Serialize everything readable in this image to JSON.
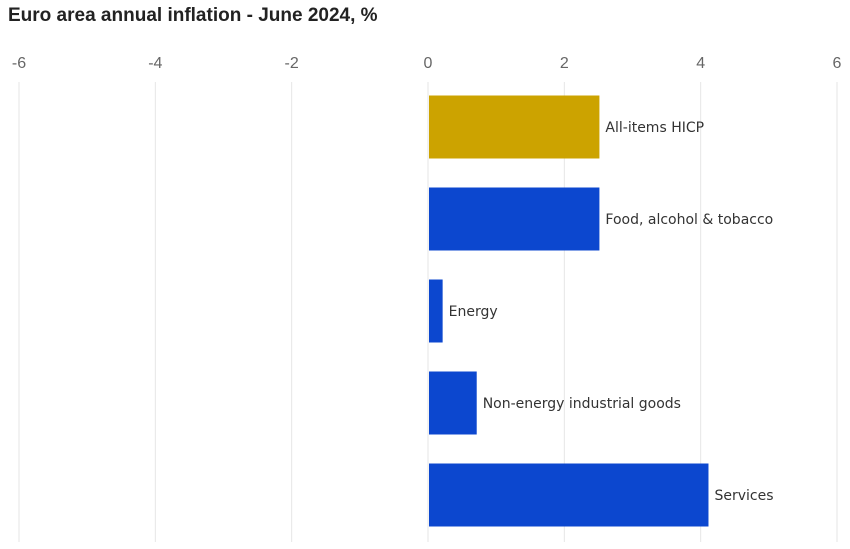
{
  "chart_data": {
    "type": "bar",
    "orientation": "horizontal",
    "title": "Euro area annual inflation - June 2024, %",
    "xlabel": "",
    "ylabel": "",
    "xlim": [
      -6,
      6
    ],
    "xticks": [
      -6,
      -4,
      -2,
      0,
      2,
      4,
      6
    ],
    "grid": true,
    "categories": [
      "All-items HICP",
      "Food, alcohol & tobacco",
      "Energy",
      "Non-energy industrial goods",
      "Services"
    ],
    "values": [
      2.5,
      2.5,
      0.2,
      0.7,
      4.1
    ],
    "bar_colors": [
      "#cca300",
      "#0c47cf",
      "#0c47cf",
      "#0c47cf",
      "#0c47cf"
    ]
  }
}
